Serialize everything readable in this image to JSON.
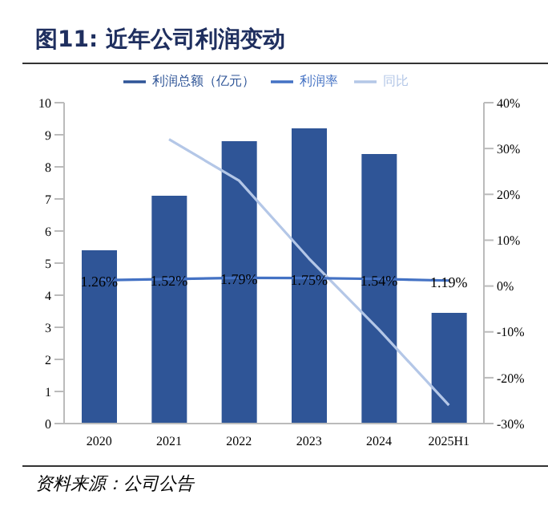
{
  "chart_data": {
    "type": "bar",
    "title": "图11: 近年公司利润变动",
    "categories": [
      "2020",
      "2021",
      "2022",
      "2023",
      "2024",
      "2025H1"
    ],
    "series": [
      {
        "name": "利润总额（亿元）",
        "color": "#2f5597",
        "values": [
          5.4,
          7.1,
          8.8,
          9.2,
          8.4,
          3.45
        ]
      },
      {
        "name": "同比",
        "type": "line",
        "axis": "y2",
        "color": "#b4c7e7",
        "values": [
          null,
          32,
          23,
          6,
          -9.5,
          -26
        ]
      },
      {
        "name": "利润率",
        "type": "line",
        "axis": "y2",
        "color": "#4472c4",
        "values": [
          1.26,
          1.52,
          1.79,
          1.75,
          1.54,
          1.19
        ],
        "value_labels": [
          "1.26%",
          "1.52%",
          "1.79%",
          "1.75%",
          "1.54%",
          "1.19%"
        ]
      }
    ],
    "ylim": [
      0,
      10
    ],
    "yticks": [
      0,
      1,
      2,
      3,
      4,
      5,
      6,
      7,
      8,
      9,
      10
    ],
    "y2lim": [
      -30,
      40
    ],
    "y2ticks": [
      {
        "value": -30,
        "label": "-30%"
      },
      {
        "value": -20,
        "label": "-20%"
      },
      {
        "value": -10,
        "label": "-10%"
      },
      {
        "value": 0,
        "label": "0%"
      },
      {
        "value": 10,
        "label": "10%"
      },
      {
        "value": 20,
        "label": "20%"
      },
      {
        "value": 30,
        "label": "30%"
      },
      {
        "value": 40,
        "label": "40%"
      }
    ],
    "legend": "top",
    "grid": false,
    "marker": "none",
    "annotations": [
      "资料来源：公司公告"
    ]
  }
}
